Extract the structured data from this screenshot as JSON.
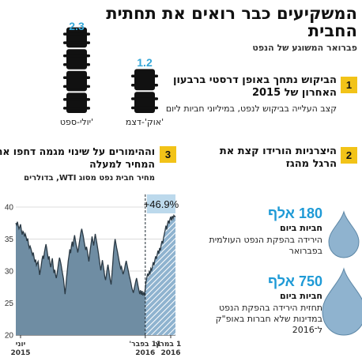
{
  "header": {
    "title": "המשקיעים כבר רואים את תחתית החבית",
    "subtitle": "פברואר המשוגע של הנפט"
  },
  "section1": {
    "number": "1",
    "title": "הביקוש נתחך באופן דרסטי ברבעון האחרון של 2015",
    "subtitle": "קצב העלייה בביקוש לנפט, במיליוני חביות ליום"
  },
  "section2": {
    "number": "2",
    "title": "היצרניות הורידו קצת את הרגל מהגז"
  },
  "section3": {
    "number": "3",
    "title": "וההימורים על שינוי מגמה דחפו את המחיר למעלה",
    "subtitle": "מחיר חבית נפט מסוג WTI, בדולרים"
  },
  "stats": [
    {
      "value": "180 אלף",
      "unit": "חביות ביום",
      "desc": "הירידה בהפקת הנפט העולמית בפברואר"
    },
    {
      "value": "750 אלף",
      "unit": "חביות ביום",
      "desc": "תחזית הירידה בהפקת הנפט במדינות שלא חברות באופ\"ק ל־2016"
    }
  ],
  "colors": {
    "accent_yellow": "#f2c318",
    "accent_blue": "#35a7d8",
    "area_dark": "#6f8da3",
    "area_striped": "#8fb3cf",
    "drop": "#8fb3cf"
  },
  "chart_data": [
    {
      "type": "bar",
      "categories": [
        "אוק'-דצמ'",
        "יולי-ספט'"
      ],
      "values": [
        1.2,
        2.3
      ],
      "value_labels": [
        "1.2",
        "2.3"
      ],
      "icon": "oil-barrel-stack"
    },
    {
      "type": "area",
      "ylim": [
        20,
        40
      ],
      "yticks": [
        20,
        25,
        30,
        35,
        40
      ],
      "xticks": [
        {
          "line1": "יוני",
          "line2": "2015"
        },
        {
          "line1": "11 בפבר'",
          "line2": "2016"
        },
        {
          "line1": "11 במרץ",
          "line2": "2016"
        }
      ],
      "annotation": "+46.9%",
      "split_index": 163,
      "series_values": [
        37.5,
        37.2,
        37.7,
        37.1,
        36.6,
        36.9,
        37.3,
        36.4,
        35.7,
        36.2,
        36.0,
        35.4,
        35.8,
        35.3,
        34.7,
        35.1,
        34.2,
        33.6,
        33.9,
        33.5,
        33.0,
        32.5,
        32.9,
        32.1,
        31.4,
        31.8,
        30.9,
        31.2,
        31.5,
        30.6,
        29.4,
        30.1,
        30.9,
        31.8,
        32.4,
        31.9,
        32.9,
        33.6,
        34.2,
        33.5,
        32.6,
        31.8,
        32.3,
        31.2,
        30.6,
        31.4,
        32.0,
        30.8,
        29.7,
        30.2,
        29.4,
        28.9,
        29.6,
        30.5,
        31.4,
        32.1,
        31.6,
        31.0,
        30.2,
        29.5,
        28.8,
        27.6,
        26.4,
        27.6,
        29.1,
        30.3,
        31.6,
        32.4,
        33.4,
        32.8,
        33.9,
        34.6,
        33.8,
        34.9,
        35.6,
        34.8,
        34.1,
        33.6,
        32.9,
        33.6,
        34.5,
        35.3,
        36.1,
        36.6,
        36.0,
        35.4,
        34.6,
        33.9,
        33.3,
        33.8,
        33.2,
        32.3,
        31.5,
        32.6,
        33.6,
        34.5,
        35.4,
        34.7,
        34.0,
        34.9,
        35.8,
        35.1,
        34.4,
        33.6,
        32.8,
        31.9,
        31.0,
        30.1,
        30.9,
        31.7,
        30.9,
        30.1,
        29.1,
        28.6,
        29.4,
        30.3,
        31.0,
        30.2,
        29.3,
        28.5,
        27.9,
        29.4,
        31.1,
        32.9,
        34.1,
        35.0,
        34.3,
        33.6,
        33.0,
        32.3,
        31.6,
        31.0,
        30.4,
        30.7,
        30.1,
        29.5,
        29.9,
        30.4,
        31.1,
        31.6,
        31.0,
        30.4,
        29.8,
        29.2,
        28.7,
        28.1,
        27.4,
        27.0,
        26.6,
        27.2,
        27.8,
        28.4,
        28.9,
        28.3,
        27.6,
        27.0,
        26.4,
        27.0,
        26.3,
        26.9,
        26.2,
        26.6,
        26.3,
        27.3,
        28.4,
        29.0,
        29.6,
        29.2,
        29.9,
        29.6,
        30.4,
        30.1,
        30.7,
        31.4,
        30.9,
        31.7,
        32.3,
        31.9,
        32.6,
        33.2,
        32.7,
        33.6,
        33.2,
        34.1,
        34.7,
        34.3,
        35.2,
        35.8,
        36.4,
        37.1,
        36.5,
        37.4,
        37.9,
        37.4,
        38.1,
        38.5,
        37.9,
        38.6,
        38.2,
        38.7,
        38.5,
        38.6
      ]
    }
  ]
}
